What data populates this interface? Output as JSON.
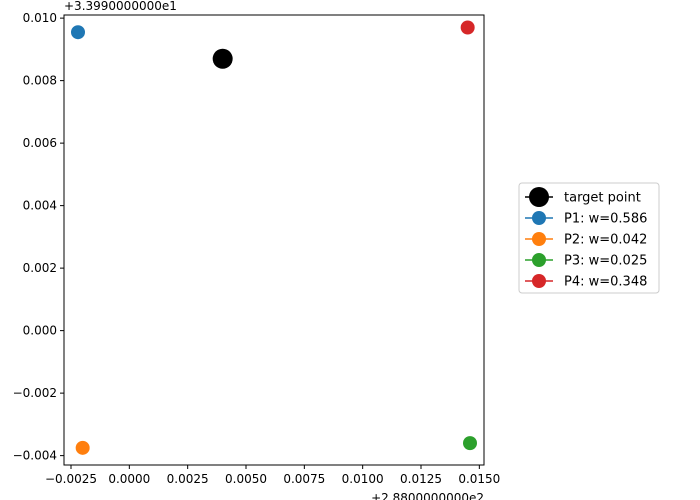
{
  "chart_data": {
    "type": "scatter",
    "x_offset_label": "+2.8800000000e2",
    "y_offset_label": "+3.3990000000e1",
    "xlim": [
      -0.0028,
      0.0152
    ],
    "ylim": [
      -0.0043,
      0.0101
    ],
    "x_ticks": [
      -0.0025,
      0.0,
      0.0025,
      0.005,
      0.0075,
      0.01,
      0.0125,
      0.015
    ],
    "x_tick_labels": [
      "−0.0025",
      "0.0000",
      "0.0025",
      "0.0050",
      "0.0075",
      "0.0100",
      "0.0125",
      "0.0150"
    ],
    "y_ticks": [
      -0.004,
      -0.002,
      0.0,
      0.002,
      0.004,
      0.006,
      0.008,
      0.01
    ],
    "y_tick_labels": [
      "−0.004",
      "−0.002",
      "0.000",
      "0.002",
      "0.004",
      "0.006",
      "0.008",
      "0.010"
    ],
    "grid": false,
    "legend_placement": "outside-right",
    "series": [
      {
        "name": "target point",
        "x": 0.004,
        "y": 0.0087,
        "color": "#000000",
        "size": "large"
      },
      {
        "name": "P1: w=0.586",
        "x": -0.0022,
        "y": 0.00955,
        "color": "#1f77b4",
        "size": "normal"
      },
      {
        "name": "P2: w=0.042",
        "x": -0.002,
        "y": -0.00375,
        "color": "#ff7f0e",
        "size": "normal"
      },
      {
        "name": "P3: w=0.025",
        "x": 0.0146,
        "y": -0.0036,
        "color": "#2ca02c",
        "size": "normal"
      },
      {
        "name": "P4: w=0.348",
        "x": 0.0145,
        "y": 0.0097,
        "color": "#d62728",
        "size": "normal"
      }
    ]
  }
}
